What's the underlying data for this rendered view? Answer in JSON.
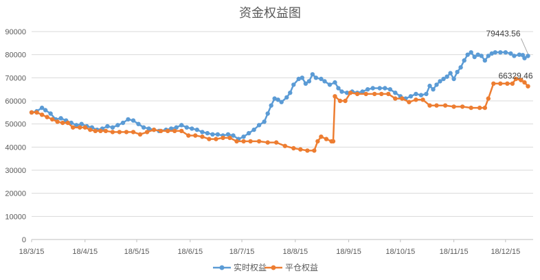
{
  "chart_data": {
    "type": "line",
    "title": "资金权益图",
    "xlabel": "",
    "ylabel": "",
    "ylim": [
      0,
      90000
    ],
    "y_ticks": [
      "0",
      "10000",
      "20000",
      "30000",
      "40000",
      "50000",
      "60000",
      "70000",
      "80000",
      "90000"
    ],
    "x_ticks": [
      "18/3/15",
      "18/4/15",
      "18/5/15",
      "18/6/15",
      "18/7/15",
      "18/8/15",
      "18/9/15",
      "18/10/15",
      "18/11/15",
      "18/12/15"
    ],
    "grid": "horizontal",
    "legend_position": "bottom",
    "series": [
      {
        "name": "实时权益",
        "color": "#5B9BD5",
        "points": [
          [
            "2018-03-15",
            55000
          ],
          [
            "2018-03-18",
            55500
          ],
          [
            "2018-03-21",
            57000
          ],
          [
            "2018-03-23",
            56000
          ],
          [
            "2018-03-26",
            54500
          ],
          [
            "2018-03-29",
            52000
          ],
          [
            "2018-04-01",
            52500
          ],
          [
            "2018-04-04",
            51500
          ],
          [
            "2018-04-07",
            50500
          ],
          [
            "2018-04-10",
            49500
          ],
          [
            "2018-04-13",
            50000
          ],
          [
            "2018-04-16",
            49000
          ],
          [
            "2018-04-19",
            48500
          ],
          [
            "2018-04-22",
            47500
          ],
          [
            "2018-04-25",
            48000
          ],
          [
            "2018-04-28",
            49000
          ],
          [
            "2018-05-01",
            48500
          ],
          [
            "2018-05-04",
            49500
          ],
          [
            "2018-05-07",
            50500
          ],
          [
            "2018-05-10",
            52000
          ],
          [
            "2018-05-13",
            51500
          ],
          [
            "2018-05-16",
            50000
          ],
          [
            "2018-05-19",
            48500
          ],
          [
            "2018-05-22",
            48000
          ],
          [
            "2018-05-25",
            47500
          ],
          [
            "2018-05-28",
            47000
          ],
          [
            "2018-06-01",
            47500
          ],
          [
            "2018-06-04",
            48000
          ],
          [
            "2018-06-07",
            48500
          ],
          [
            "2018-06-10",
            49500
          ],
          [
            "2018-06-13",
            48500
          ],
          [
            "2018-06-16",
            48000
          ],
          [
            "2018-06-19",
            47500
          ],
          [
            "2018-06-22",
            46500
          ],
          [
            "2018-06-25",
            46000
          ],
          [
            "2018-06-28",
            45500
          ],
          [
            "2018-07-01",
            45500
          ],
          [
            "2018-07-04",
            45000
          ],
          [
            "2018-07-07",
            45500
          ],
          [
            "2018-07-10",
            45000
          ],
          [
            "2018-07-13",
            43500
          ],
          [
            "2018-07-16",
            44500
          ],
          [
            "2018-07-19",
            46000
          ],
          [
            "2018-07-22",
            47500
          ],
          [
            "2018-07-25",
            49500
          ],
          [
            "2018-07-28",
            51000
          ],
          [
            "2018-07-30",
            54500
          ],
          [
            "2018-08-01",
            58000
          ],
          [
            "2018-08-03",
            61000
          ],
          [
            "2018-08-05",
            60500
          ],
          [
            "2018-08-07",
            59500
          ],
          [
            "2018-08-10",
            61500
          ],
          [
            "2018-08-12",
            63500
          ],
          [
            "2018-08-14",
            67000
          ],
          [
            "2018-08-17",
            69500
          ],
          [
            "2018-08-19",
            70000
          ],
          [
            "2018-08-21",
            67500
          ],
          [
            "2018-08-23",
            68500
          ],
          [
            "2018-08-25",
            71500
          ],
          [
            "2018-08-27",
            70000
          ],
          [
            "2018-08-30",
            69500
          ],
          [
            "2018-09-01",
            68500
          ],
          [
            "2018-09-04",
            67000
          ],
          [
            "2018-09-07",
            68000
          ],
          [
            "2018-09-09",
            65500
          ],
          [
            "2018-09-11",
            64000
          ],
          [
            "2018-09-14",
            63500
          ],
          [
            "2018-09-17",
            64000
          ],
          [
            "2018-09-20",
            63500
          ],
          [
            "2018-09-23",
            64000
          ],
          [
            "2018-09-26",
            65000
          ],
          [
            "2018-09-29",
            65500
          ],
          [
            "2018-10-03",
            65500
          ],
          [
            "2018-10-06",
            65500
          ],
          [
            "2018-10-09",
            65000
          ],
          [
            "2018-10-12",
            63500
          ],
          [
            "2018-10-15",
            62000
          ],
          [
            "2018-10-18",
            61000
          ],
          [
            "2018-10-21",
            62000
          ],
          [
            "2018-10-24",
            63000
          ],
          [
            "2018-10-27",
            62500
          ],
          [
            "2018-10-30",
            63000
          ],
          [
            "2018-11-01",
            66500
          ],
          [
            "2018-11-03",
            65000
          ],
          [
            "2018-11-05",
            67000
          ],
          [
            "2018-11-07",
            68500
          ],
          [
            "2018-11-09",
            69500
          ],
          [
            "2018-11-11",
            70500
          ],
          [
            "2018-11-13",
            72000
          ],
          [
            "2018-11-15",
            69500
          ],
          [
            "2018-11-17",
            72500
          ],
          [
            "2018-11-19",
            74500
          ],
          [
            "2018-11-21",
            77500
          ],
          [
            "2018-11-23",
            80000
          ],
          [
            "2018-11-25",
            81000
          ],
          [
            "2018-11-27",
            79000
          ],
          [
            "2018-11-29",
            80000
          ],
          [
            "2018-12-01",
            79500
          ],
          [
            "2018-12-03",
            77500
          ],
          [
            "2018-12-05",
            79500
          ],
          [
            "2018-12-07",
            80500
          ],
          [
            "2018-12-09",
            81000
          ],
          [
            "2018-12-12",
            81000
          ],
          [
            "2018-12-15",
            81000
          ],
          [
            "2018-12-18",
            80500
          ],
          [
            "2018-12-20",
            79500
          ],
          [
            "2018-12-23",
            80000
          ],
          [
            "2018-12-25",
            79800
          ],
          [
            "2018-12-26",
            78500
          ],
          [
            "2018-12-28",
            79443.56
          ]
        ]
      },
      {
        "name": "平仓权益",
        "color": "#ED7D31",
        "points": [
          [
            "2018-03-15",
            55000
          ],
          [
            "2018-03-18",
            55000
          ],
          [
            "2018-03-21",
            54000
          ],
          [
            "2018-03-24",
            53000
          ],
          [
            "2018-03-27",
            52000
          ],
          [
            "2018-03-30",
            51000
          ],
          [
            "2018-04-02",
            50500
          ],
          [
            "2018-04-05",
            50500
          ],
          [
            "2018-04-08",
            48500
          ],
          [
            "2018-04-12",
            48500
          ],
          [
            "2018-04-15",
            48500
          ],
          [
            "2018-04-18",
            47500
          ],
          [
            "2018-04-21",
            47000
          ],
          [
            "2018-04-24",
            47000
          ],
          [
            "2018-04-27",
            47000
          ],
          [
            "2018-05-01",
            46500
          ],
          [
            "2018-05-05",
            46500
          ],
          [
            "2018-05-09",
            46500
          ],
          [
            "2018-05-13",
            46500
          ],
          [
            "2018-05-17",
            45500
          ],
          [
            "2018-05-21",
            46500
          ],
          [
            "2018-05-25",
            47500
          ],
          [
            "2018-05-29",
            47000
          ],
          [
            "2018-06-02",
            47000
          ],
          [
            "2018-06-06",
            47000
          ],
          [
            "2018-06-10",
            47000
          ],
          [
            "2018-06-14",
            45000
          ],
          [
            "2018-06-18",
            45000
          ],
          [
            "2018-06-22",
            44500
          ],
          [
            "2018-06-26",
            43500
          ],
          [
            "2018-06-30",
            43500
          ],
          [
            "2018-07-04",
            44000
          ],
          [
            "2018-07-08",
            44000
          ],
          [
            "2018-07-12",
            42500
          ],
          [
            "2018-07-16",
            42500
          ],
          [
            "2018-07-20",
            42500
          ],
          [
            "2018-07-25",
            42500
          ],
          [
            "2018-07-30",
            42000
          ],
          [
            "2018-08-04",
            42000
          ],
          [
            "2018-08-09",
            40500
          ],
          [
            "2018-08-14",
            39500
          ],
          [
            "2018-08-18",
            39000
          ],
          [
            "2018-08-22",
            38500
          ],
          [
            "2018-08-26",
            38500
          ],
          [
            "2018-08-28",
            42500
          ],
          [
            "2018-08-30",
            44500
          ],
          [
            "2018-09-02",
            43500
          ],
          [
            "2018-09-05",
            42500
          ],
          [
            "2018-09-06",
            42500
          ],
          [
            "2018-09-07",
            62000
          ],
          [
            "2018-09-10",
            60000
          ],
          [
            "2018-09-13",
            60000
          ],
          [
            "2018-09-16",
            63500
          ],
          [
            "2018-09-20",
            63000
          ],
          [
            "2018-09-25",
            63000
          ],
          [
            "2018-09-30",
            63000
          ],
          [
            "2018-10-04",
            63000
          ],
          [
            "2018-10-08",
            63000
          ],
          [
            "2018-10-12",
            61000
          ],
          [
            "2018-10-16",
            61000
          ],
          [
            "2018-10-20",
            59500
          ],
          [
            "2018-10-24",
            60500
          ],
          [
            "2018-10-28",
            60500
          ],
          [
            "2018-11-01",
            58000
          ],
          [
            "2018-11-05",
            58000
          ],
          [
            "2018-11-10",
            58000
          ],
          [
            "2018-11-15",
            57500
          ],
          [
            "2018-11-20",
            57500
          ],
          [
            "2018-11-25",
            57000
          ],
          [
            "2018-11-30",
            57000
          ],
          [
            "2018-12-03",
            57000
          ],
          [
            "2018-12-05",
            61000
          ],
          [
            "2018-12-08",
            67500
          ],
          [
            "2018-12-12",
            67500
          ],
          [
            "2018-12-16",
            67500
          ],
          [
            "2018-12-19",
            67500
          ],
          [
            "2018-12-21",
            69500
          ],
          [
            "2018-12-24",
            69000
          ],
          [
            "2018-12-26",
            68000
          ],
          [
            "2018-12-28",
            66329.46
          ]
        ]
      }
    ],
    "annotations": [
      "79443.56",
      "66329.46"
    ]
  }
}
